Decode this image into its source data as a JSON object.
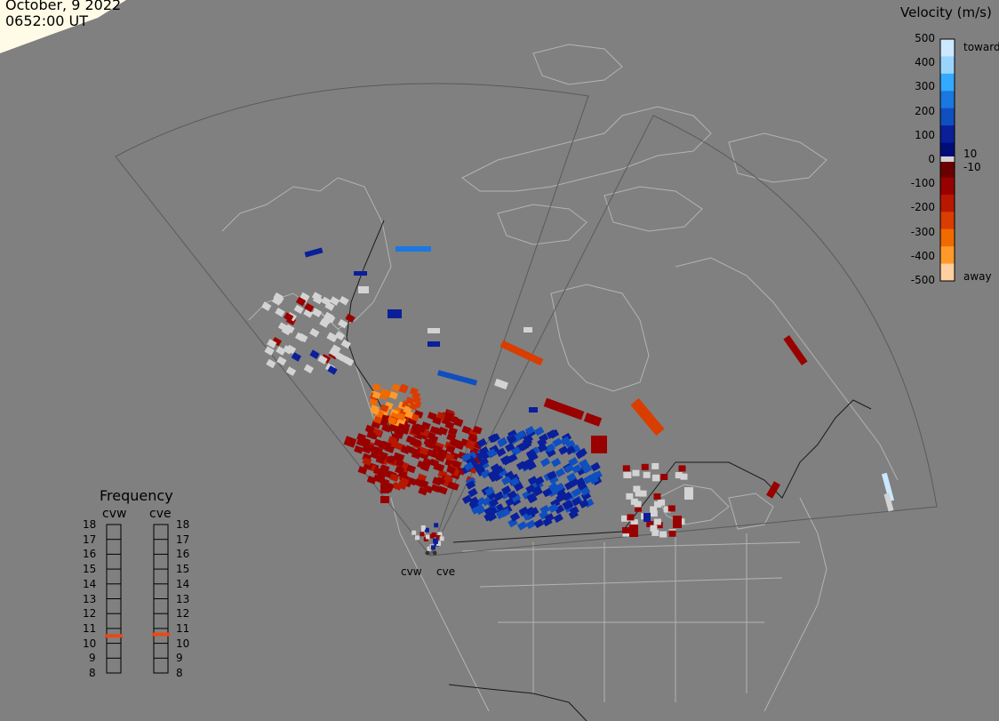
{
  "date": "October, 9 2022",
  "time": "0652:00 UT",
  "legend": {
    "title": "Velocity (m/s)",
    "ticks": [
      "500",
      "400",
      "300",
      "200",
      "100",
      "0",
      "-100",
      "-200",
      "-300",
      "-400",
      "-500"
    ],
    "extra_labels": {
      "toward": "toward",
      "away": "away",
      "pos_threshold": "10",
      "neg_threshold": "-10"
    },
    "colors": [
      "#cce8ff",
      "#99d4ff",
      "#33aaff",
      "#1a78e0",
      "#0f4fbf",
      "#0a1f9a",
      "#000c78",
      "#6a0000",
      "#990000",
      "#b81800",
      "#d93d00",
      "#f06a00",
      "#ff9a2a",
      "#ffd0a0"
    ]
  },
  "frequency": {
    "title": "Frequency",
    "radars": [
      {
        "name": "cvw",
        "value_mhz": 10.5
      },
      {
        "name": "cve",
        "value_mhz": 10.6
      }
    ],
    "scale": [
      "18",
      "17",
      "16",
      "15",
      "14",
      "13",
      "12",
      "11",
      "10",
      "9",
      "8"
    ]
  },
  "radar_labels": [
    "cvw",
    "cve"
  ],
  "colors": {
    "background": "#808080",
    "coastline": "#b3b3b3",
    "fov_outline": "#5a5a5a",
    "ground_scatter": "#d3d3d3",
    "terminator": "#fffbe6",
    "frequency_marker": "#e64a19"
  }
}
